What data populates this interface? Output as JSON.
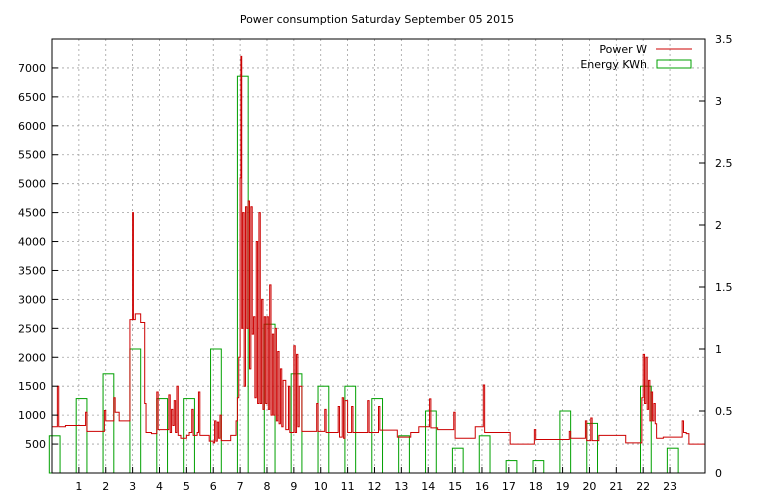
{
  "chart_data": {
    "type": "line",
    "title": "Power consumption Saturday September 05 2015",
    "xlabel": "",
    "ylabel": "",
    "xlim": [
      0,
      24.3
    ],
    "ylim": [
      0,
      7500
    ],
    "y2lim": [
      0,
      3.5
    ],
    "x_ticks": [
      1,
      2,
      3,
      4,
      5,
      6,
      7,
      8,
      9,
      10,
      11,
      12,
      13,
      14,
      15,
      16,
      17,
      18,
      19,
      20,
      21,
      22,
      23
    ],
    "y_ticks": [
      500,
      1000,
      1500,
      2000,
      2500,
      3000,
      3500,
      4000,
      4500,
      5000,
      5500,
      6000,
      6500,
      7000
    ],
    "y2_ticks": [
      "0",
      "0.5",
      "1",
      "1.5",
      "2",
      "2.5",
      "3",
      "3.5"
    ],
    "grid": true,
    "legend_position": "top-right",
    "series": [
      {
        "name": "Power W",
        "axis": "left",
        "style": "step-line",
        "color": "#cc0000",
        "points": [
          [
            0.0,
            800
          ],
          [
            0.2,
            1500
          ],
          [
            0.25,
            800
          ],
          [
            0.5,
            820
          ],
          [
            1.2,
            820
          ],
          [
            1.25,
            1050
          ],
          [
            1.3,
            720
          ],
          [
            1.9,
            720
          ],
          [
            1.95,
            1080
          ],
          [
            2.0,
            900
          ],
          [
            2.2,
            900
          ],
          [
            2.3,
            1300
          ],
          [
            2.35,
            1050
          ],
          [
            2.5,
            900
          ],
          [
            2.85,
            900
          ],
          [
            2.9,
            2650
          ],
          [
            3.0,
            4500
          ],
          [
            3.03,
            2650
          ],
          [
            3.1,
            2750
          ],
          [
            3.3,
            2600
          ],
          [
            3.45,
            1200
          ],
          [
            3.5,
            700
          ],
          [
            3.7,
            680
          ],
          [
            3.85,
            680
          ],
          [
            3.9,
            1400
          ],
          [
            3.95,
            750
          ],
          [
            4.3,
            750
          ],
          [
            4.35,
            1350
          ],
          [
            4.4,
            700
          ],
          [
            4.45,
            1100
          ],
          [
            4.5,
            820
          ],
          [
            4.55,
            1250
          ],
          [
            4.6,
            700
          ],
          [
            4.65,
            1500
          ],
          [
            4.7,
            650
          ],
          [
            4.8,
            600
          ],
          [
            5.0,
            650
          ],
          [
            5.1,
            700
          ],
          [
            5.2,
            1100
          ],
          [
            5.25,
            650
          ],
          [
            5.4,
            700
          ],
          [
            5.45,
            1400
          ],
          [
            5.5,
            650
          ],
          [
            5.8,
            650
          ],
          [
            5.85,
            550
          ],
          [
            6.0,
            520
          ],
          [
            6.05,
            900
          ],
          [
            6.1,
            550
          ],
          [
            6.15,
            880
          ],
          [
            6.2,
            600
          ],
          [
            6.25,
            1000
          ],
          [
            6.3,
            560
          ],
          [
            6.6,
            560
          ],
          [
            6.65,
            650
          ],
          [
            6.8,
            650
          ],
          [
            6.85,
            900
          ],
          [
            6.9,
            1300
          ],
          [
            6.95,
            2000
          ],
          [
            7.0,
            5100
          ],
          [
            7.03,
            7200
          ],
          [
            7.06,
            2500
          ],
          [
            7.1,
            4500
          ],
          [
            7.15,
            1500
          ],
          [
            7.2,
            4600
          ],
          [
            7.25,
            2500
          ],
          [
            7.3,
            4700
          ],
          [
            7.35,
            1800
          ],
          [
            7.4,
            4600
          ],
          [
            7.45,
            2400
          ],
          [
            7.5,
            2700
          ],
          [
            7.55,
            1300
          ],
          [
            7.6,
            4000
          ],
          [
            7.65,
            1200
          ],
          [
            7.7,
            4500
          ],
          [
            7.75,
            1200
          ],
          [
            7.8,
            3000
          ],
          [
            7.85,
            1100
          ],
          [
            7.9,
            2700
          ],
          [
            7.95,
            1200
          ],
          [
            8.0,
            2700
          ],
          [
            8.05,
            1100
          ],
          [
            8.1,
            3250
          ],
          [
            8.15,
            1000
          ],
          [
            8.2,
            2400
          ],
          [
            8.25,
            1000
          ],
          [
            8.3,
            2500
          ],
          [
            8.35,
            900
          ],
          [
            8.4,
            2100
          ],
          [
            8.45,
            850
          ],
          [
            8.5,
            1800
          ],
          [
            8.55,
            800
          ],
          [
            8.6,
            1600
          ],
          [
            8.7,
            750
          ],
          [
            8.8,
            1500
          ],
          [
            8.85,
            700
          ],
          [
            9.0,
            2200
          ],
          [
            9.05,
            700
          ],
          [
            9.1,
            2050
          ],
          [
            9.15,
            800
          ],
          [
            9.2,
            1500
          ],
          [
            9.3,
            720
          ],
          [
            9.8,
            720
          ],
          [
            9.85,
            1200
          ],
          [
            9.9,
            720
          ],
          [
            10.1,
            720
          ],
          [
            10.15,
            1100
          ],
          [
            10.2,
            700
          ],
          [
            10.6,
            700
          ],
          [
            10.65,
            1150
          ],
          [
            10.7,
            620
          ],
          [
            10.8,
            1300
          ],
          [
            10.85,
            600
          ],
          [
            10.9,
            1250
          ],
          [
            11.0,
            700
          ],
          [
            11.1,
            700
          ],
          [
            11.15,
            1150
          ],
          [
            11.2,
            700
          ],
          [
            11.7,
            700
          ],
          [
            11.75,
            1250
          ],
          [
            11.8,
            700
          ],
          [
            12.1,
            700
          ],
          [
            12.15,
            1150
          ],
          [
            12.2,
            740
          ],
          [
            12.8,
            740
          ],
          [
            12.85,
            620
          ],
          [
            13.3,
            620
          ],
          [
            13.35,
            700
          ],
          [
            13.6,
            700
          ],
          [
            13.65,
            800
          ],
          [
            14.0,
            800
          ],
          [
            14.05,
            1280
          ],
          [
            14.1,
            780
          ],
          [
            14.3,
            780
          ],
          [
            14.35,
            750
          ],
          [
            14.9,
            750
          ],
          [
            14.95,
            1050
          ],
          [
            15.0,
            600
          ],
          [
            15.7,
            600
          ],
          [
            15.75,
            800
          ],
          [
            16.0,
            800
          ],
          [
            16.05,
            1520
          ],
          [
            16.1,
            700
          ],
          [
            16.5,
            700
          ],
          [
            16.55,
            700
          ],
          [
            17.0,
            700
          ],
          [
            17.05,
            500
          ],
          [
            17.9,
            500
          ],
          [
            17.95,
            750
          ],
          [
            18.0,
            580
          ],
          [
            18.8,
            580
          ],
          [
            18.85,
            580
          ],
          [
            19.2,
            580
          ],
          [
            19.25,
            720
          ],
          [
            19.3,
            600
          ],
          [
            19.8,
            600
          ],
          [
            19.85,
            900
          ],
          [
            19.9,
            560
          ],
          [
            20.0,
            560
          ],
          [
            20.05,
            950
          ],
          [
            20.1,
            560
          ],
          [
            20.3,
            560
          ],
          [
            20.35,
            650
          ],
          [
            21.3,
            650
          ],
          [
            21.35,
            520
          ],
          [
            21.9,
            520
          ],
          [
            21.95,
            1300
          ],
          [
            22.0,
            2050
          ],
          [
            22.05,
            1200
          ],
          [
            22.1,
            2000
          ],
          [
            22.15,
            1100
          ],
          [
            22.2,
            1600
          ],
          [
            22.25,
            900
          ],
          [
            22.3,
            1400
          ],
          [
            22.35,
            900
          ],
          [
            22.4,
            1200
          ],
          [
            22.45,
            850
          ],
          [
            22.5,
            600
          ],
          [
            22.7,
            600
          ],
          [
            22.75,
            620
          ],
          [
            23.4,
            620
          ],
          [
            23.45,
            900
          ],
          [
            23.5,
            700
          ],
          [
            23.6,
            680
          ],
          [
            23.7,
            500
          ]
        ]
      },
      {
        "name": "Energy KWh",
        "axis": "right",
        "style": "boxes",
        "color": "#00a000",
        "bars": [
          [
            0,
            0.3
          ],
          [
            1,
            0.6
          ],
          [
            2,
            0.8
          ],
          [
            3,
            1.0
          ],
          [
            4,
            0.6
          ],
          [
            5,
            0.6
          ],
          [
            6,
            1.0
          ],
          [
            7,
            3.2
          ],
          [
            8,
            1.2
          ],
          [
            9,
            0.8
          ],
          [
            10,
            0.7
          ],
          [
            11,
            0.7
          ],
          [
            12,
            0.6
          ],
          [
            13,
            0.3
          ],
          [
            14,
            0.5
          ],
          [
            15,
            0.2
          ],
          [
            16,
            0.3
          ],
          [
            17,
            0.1
          ],
          [
            18,
            0.1
          ],
          [
            19,
            0.5
          ],
          [
            20,
            0.4
          ],
          [
            21,
            0.0
          ],
          [
            22,
            0.7
          ],
          [
            23,
            0.2
          ]
        ]
      }
    ]
  }
}
